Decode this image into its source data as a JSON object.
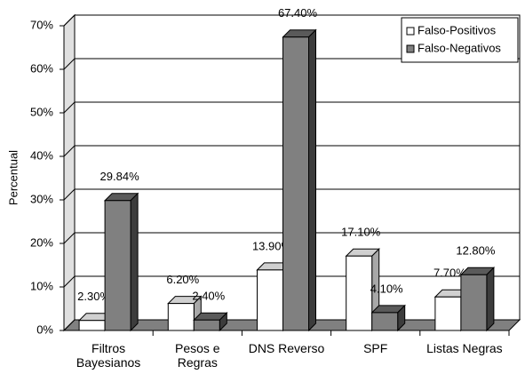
{
  "chart_data": {
    "type": "bar3d",
    "y_label": "Percentual",
    "categories": [
      "Filtros\nBayesianos",
      "Pesos e\nRegras",
      "DNS Reverso",
      "SPF",
      "Listas Negras"
    ],
    "series": [
      {
        "name": "Falso-Positivos",
        "color": "#ffffff",
        "values": [
          2.3,
          6.2,
          13.9,
          17.1,
          7.7
        ],
        "value_labels": [
          "2.30%",
          "6.20%",
          "13.90%",
          "17.10%",
          "7.70%"
        ]
      },
      {
        "name": "Falso-Negativos",
        "color": "#808080",
        "values": [
          29.84,
          2.4,
          67.4,
          4.1,
          12.8
        ],
        "value_labels": [
          "29.84%",
          "2.40%",
          "67.40%",
          "4.10%",
          "12.80%"
        ]
      }
    ],
    "ylim": [
      0,
      70
    ],
    "yticks": [
      {
        "value": 0,
        "label": "0%"
      },
      {
        "value": 10,
        "label": "10%"
      },
      {
        "value": 20,
        "label": "20%"
      },
      {
        "value": 30,
        "label": "30%"
      },
      {
        "value": 40,
        "label": "40%"
      },
      {
        "value": 50,
        "label": "50%"
      },
      {
        "value": 60,
        "label": "60%"
      },
      {
        "value": 70,
        "label": "70%"
      }
    ],
    "grid": true,
    "legend": "top-right"
  }
}
